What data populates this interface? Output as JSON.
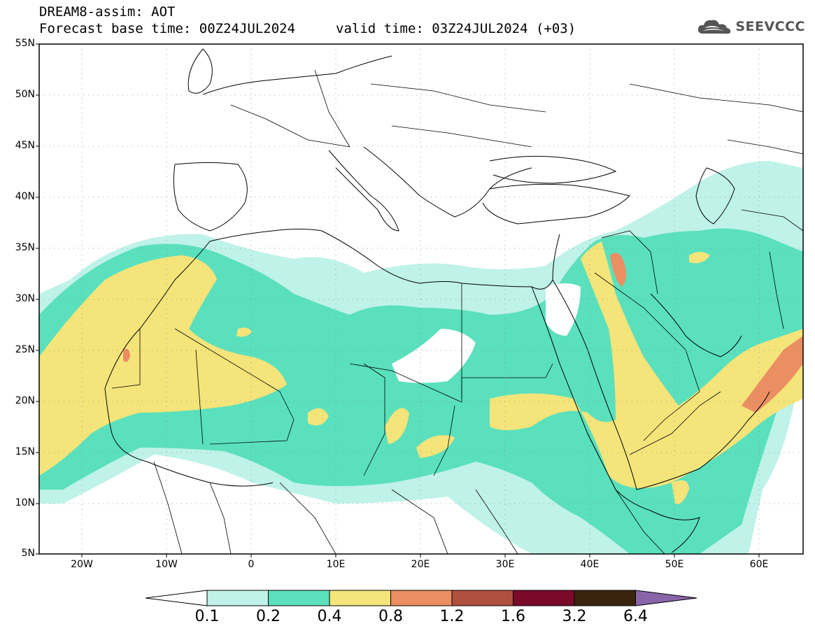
{
  "header": {
    "title": "DREAM8-assim: AOT",
    "base_time": "Forecast base time: 00Z24JUL2024",
    "valid_time": "valid time: 03Z24JUL2024 (+03)"
  },
  "logo": {
    "text": "SEEVCCC",
    "icon": "cloud-icon",
    "color": "#555555"
  },
  "map": {
    "lat_labels": [
      "55N",
      "50N",
      "45N",
      "40N",
      "35N",
      "30N",
      "25N",
      "20N",
      "15N",
      "10N",
      "5N"
    ],
    "lon_labels": [
      "20W",
      "10W",
      "0",
      "10E",
      "20E",
      "30E",
      "40E",
      "50E",
      "60E"
    ],
    "lon_range": [
      -25,
      65
    ],
    "lat_range": [
      5,
      55
    ]
  },
  "colorbar": {
    "levels": [
      "0.1",
      "0.2",
      "0.4",
      "0.8",
      "1.2",
      "1.6",
      "3.2",
      "6.4"
    ],
    "colors": [
      "#ffffff",
      "#bff2e8",
      "#5ae0bc",
      "#f4e47a",
      "#eb8e62",
      "#b0503f",
      "#7a0a2a",
      "#3a2410",
      "#8a64a8"
    ]
  }
}
